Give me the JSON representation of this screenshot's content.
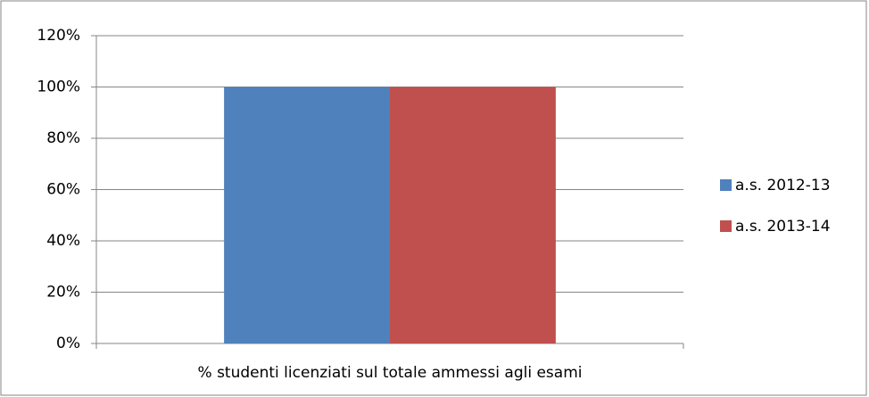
{
  "chart_data": {
    "type": "bar",
    "categories": [
      "% studenti licenziati sul totale ammessi agli esami"
    ],
    "series": [
      {
        "name": "a.s. 2012-13",
        "color": "#4f81bd",
        "values": [
          100
        ]
      },
      {
        "name": "a.s. 2013-14",
        "color": "#c0504d",
        "values": [
          100
        ]
      }
    ],
    "ylim": [
      0,
      120
    ],
    "yticks": [
      {
        "value": 0,
        "label": "0%"
      },
      {
        "value": 20,
        "label": "20%"
      },
      {
        "value": 40,
        "label": "40%"
      },
      {
        "value": 60,
        "label": "60%"
      },
      {
        "value": 80,
        "label": "80%"
      },
      {
        "value": 100,
        "label": "100%"
      },
      {
        "value": 120,
        "label": "120%"
      }
    ],
    "grid": true,
    "legend": "right"
  }
}
